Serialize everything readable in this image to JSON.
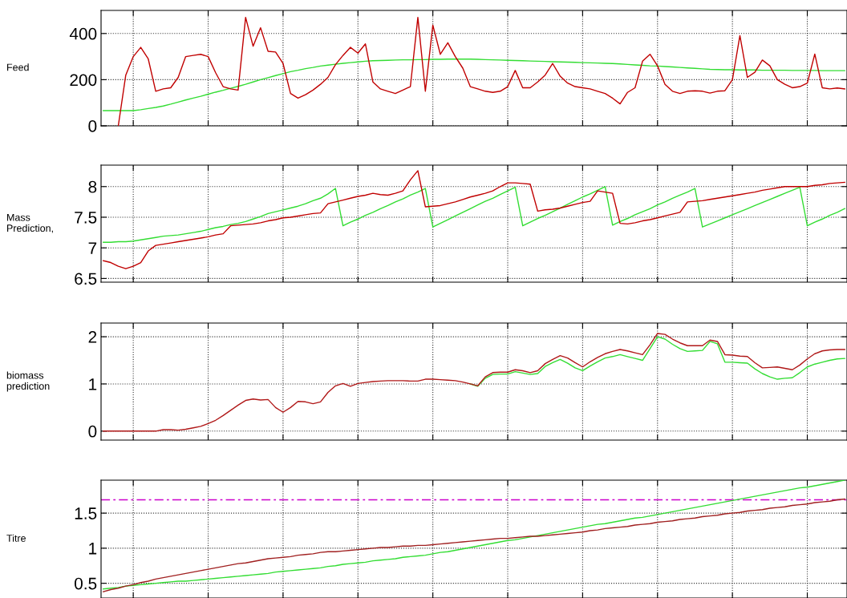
{
  "chart_data": [
    {
      "type": "line",
      "ylabel": "Feed",
      "categories": [
        null,
        null,
        null,
        null,
        null,
        null,
        null,
        null,
        null,
        null,
        null,
        null,
        null,
        null,
        null,
        null,
        null,
        null,
        null,
        null,
        null,
        null,
        null,
        null,
        null,
        null,
        null,
        null,
        null,
        null,
        null,
        null,
        null,
        null,
        null,
        null,
        null,
        null,
        null,
        null,
        null,
        null,
        null,
        null,
        null,
        null,
        null,
        null,
        null,
        null,
        null,
        null,
        null,
        null,
        null,
        null,
        null,
        null,
        null,
        null,
        null,
        null,
        null,
        null,
        null,
        null,
        null,
        null,
        null,
        null,
        null,
        null,
        null,
        null,
        null,
        null,
        null,
        null,
        null,
        null,
        null,
        null,
        null,
        null,
        null,
        null,
        null,
        null,
        null,
        null,
        null,
        null,
        null,
        null,
        null,
        null,
        null,
        null,
        null,
        null
      ],
      "ylim": [
        0,
        500
      ],
      "yticks": [
        0,
        200,
        400
      ],
      "grid": true,
      "tick_labels": "y",
      "line_style": "solid",
      "marker": "none",
      "series": [
        {
          "color": "#33dd33",
          "values": [
            66,
            66,
            66,
            66,
            66,
            70,
            75,
            80,
            86,
            94,
            103,
            112,
            120,
            128,
            137,
            146,
            154,
            163,
            171,
            180,
            190,
            200,
            209,
            218,
            226,
            235,
            241,
            248,
            253,
            259,
            263,
            267,
            271,
            274,
            277,
            280,
            282,
            283,
            284,
            285,
            286,
            286,
            287,
            287,
            288,
            288,
            289,
            289,
            289,
            289,
            288,
            287,
            286,
            285,
            284,
            283,
            282,
            281,
            280,
            279,
            278,
            277,
            276,
            275,
            274,
            273,
            272,
            271,
            270,
            268,
            266,
            264,
            262,
            260,
            259,
            257,
            255,
            253,
            251,
            249,
            247,
            245,
            244,
            243,
            243,
            242,
            242,
            242,
            241,
            241,
            241,
            241,
            240,
            240,
            240,
            240,
            239,
            239,
            239,
            239
          ]
        },
        {
          "color": "#c00000",
          "values": [
            null,
            null,
            0,
            220,
            300,
            340,
            290,
            150,
            160,
            165,
            210,
            300,
            305,
            310,
            300,
            230,
            170,
            160,
            155,
            470,
            345,
            425,
            323,
            320,
            270,
            140,
            120,
            135,
            155,
            180,
            210,
            265,
            305,
            340,
            315,
            355,
            190,
            160,
            150,
            140,
            155,
            170,
            470,
            150,
            436,
            310,
            360,
            300,
            250,
            170,
            160,
            150,
            145,
            150,
            170,
            240,
            165,
            165,
            190,
            220,
            270,
            215,
            185,
            170,
            165,
            160,
            150,
            140,
            120,
            95,
            145,
            165,
            280,
            310,
            260,
            180,
            150,
            140,
            150,
            152,
            150,
            142,
            150,
            152,
            200,
            391,
            210,
            232,
            285,
            260,
            200,
            180,
            165,
            170,
            185,
            311,
            165,
            160,
            164,
            160
          ]
        }
      ]
    },
    {
      "type": "line",
      "ylabel": "Mass\nPrediction,",
      "categories": [
        null,
        null,
        null,
        null,
        null,
        null,
        null,
        null,
        null,
        null,
        null,
        null,
        null,
        null,
        null,
        null,
        null,
        null,
        null,
        null,
        null,
        null,
        null,
        null,
        null,
        null,
        null,
        null,
        null,
        null,
        null,
        null,
        null,
        null,
        null,
        null,
        null,
        null,
        null,
        null,
        null,
        null,
        null,
        null,
        null,
        null,
        null,
        null,
        null,
        null,
        null,
        null,
        null,
        null,
        null,
        null,
        null,
        null,
        null,
        null,
        null,
        null,
        null,
        null,
        null,
        null,
        null,
        null,
        null,
        null,
        null,
        null,
        null,
        null,
        null,
        null,
        null,
        null,
        null,
        null,
        null,
        null,
        null,
        null,
        null,
        null,
        null,
        null,
        null,
        null,
        null,
        null,
        null,
        null,
        null,
        null,
        null,
        null,
        null,
        null
      ],
      "ylim": [
        6.44,
        8.35
      ],
      "yticks": [
        6.5,
        7,
        7.5,
        8
      ],
      "grid": true,
      "tick_labels": "y",
      "line_style": "solid",
      "marker": "none",
      "series": [
        {
          "color": "#33dd33",
          "values": [
            7.09,
            7.09,
            7.1,
            7.1,
            7.11,
            7.13,
            7.15,
            7.17,
            7.19,
            7.2,
            7.21,
            7.23,
            7.25,
            7.27,
            7.3,
            7.33,
            7.35,
            7.38,
            7.4,
            7.43,
            7.47,
            7.51,
            7.56,
            7.59,
            7.62,
            7.65,
            7.68,
            7.72,
            7.77,
            7.81,
            7.88,
            7.97,
            7.36,
            7.42,
            7.47,
            7.53,
            7.58,
            7.64,
            7.69,
            7.75,
            7.8,
            7.86,
            7.91,
            7.97,
            7.34,
            7.4,
            7.46,
            7.52,
            7.58,
            7.64,
            7.7,
            7.76,
            7.81,
            7.87,
            7.93,
            7.99,
            7.36,
            7.42,
            7.48,
            7.53,
            7.59,
            7.65,
            7.71,
            7.77,
            7.83,
            7.88,
            7.94,
            8.0,
            7.37,
            7.43,
            7.48,
            7.54,
            7.59,
            7.64,
            7.7,
            7.75,
            7.81,
            7.86,
            7.91,
            7.97,
            7.34,
            7.39,
            7.44,
            7.49,
            7.54,
            7.59,
            7.64,
            7.69,
            7.74,
            7.79,
            7.84,
            7.89,
            7.94,
            7.99,
            7.36,
            7.42,
            7.47,
            7.53,
            7.58,
            7.64
          ]
        },
        {
          "color": "#c00000",
          "values": [
            6.79,
            6.76,
            6.7,
            6.66,
            6.7,
            6.76,
            6.95,
            7.04,
            7.06,
            7.08,
            7.1,
            7.12,
            7.14,
            7.16,
            7.18,
            7.21,
            7.23,
            7.36,
            7.37,
            7.38,
            7.39,
            7.41,
            7.44,
            7.46,
            7.49,
            7.5,
            7.52,
            7.54,
            7.56,
            7.57,
            7.72,
            7.75,
            7.78,
            7.81,
            7.84,
            7.86,
            7.89,
            7.87,
            7.86,
            7.89,
            7.93,
            8.11,
            8.26,
            7.67,
            7.68,
            7.69,
            7.72,
            7.75,
            7.79,
            7.83,
            7.86,
            7.89,
            7.93,
            8.0,
            8.06,
            8.06,
            8.05,
            8.04,
            7.6,
            7.62,
            7.63,
            7.65,
            7.68,
            7.71,
            7.74,
            7.76,
            7.93,
            7.91,
            7.89,
            7.4,
            7.39,
            7.41,
            7.44,
            7.46,
            7.49,
            7.52,
            7.55,
            7.58,
            7.75,
            7.76,
            7.77,
            7.79,
            7.81,
            7.83,
            7.85,
            7.87,
            7.89,
            7.91,
            7.94,
            7.96,
            7.98,
            8.0,
            8.0,
            8.0,
            8.0,
            8.02,
            8.03,
            8.05,
            8.06,
            8.07
          ]
        }
      ]
    },
    {
      "type": "line",
      "ylabel": "biomass\nprediction",
      "categories": [
        null,
        null,
        null,
        null,
        null,
        null,
        null,
        null,
        null,
        null,
        null,
        null,
        null,
        null,
        null,
        null,
        null,
        null,
        null,
        null,
        null,
        null,
        null,
        null,
        null,
        null,
        null,
        null,
        null,
        null,
        null,
        null,
        null,
        null,
        null,
        null,
        null,
        null,
        null,
        null,
        null,
        null,
        null,
        null,
        null,
        null,
        null,
        null,
        null,
        null,
        null,
        null,
        null,
        null,
        null,
        null,
        null,
        null,
        null,
        null,
        null,
        null,
        null,
        null,
        null,
        null,
        null,
        null,
        null,
        null,
        null,
        null,
        null,
        null,
        null,
        null,
        null,
        null,
        null,
        null,
        null,
        null,
        null,
        null,
        null,
        null,
        null,
        null,
        null,
        null,
        null,
        null,
        null,
        null,
        null,
        null,
        null,
        null,
        null,
        null
      ],
      "ylim": [
        -0.19,
        2.29
      ],
      "yticks": [
        0,
        1,
        2
      ],
      "grid": true,
      "tick_labels": "y",
      "line_style": "solid",
      "marker": "none",
      "series": [
        {
          "color": "#33dd33",
          "values": [
            null,
            null,
            null,
            null,
            null,
            null,
            null,
            null,
            null,
            null,
            null,
            null,
            null,
            null,
            null,
            null,
            null,
            null,
            null,
            null,
            null,
            null,
            null,
            null,
            null,
            null,
            null,
            null,
            null,
            null,
            null,
            null,
            null,
            null,
            null,
            null,
            null,
            null,
            null,
            null,
            null,
            null,
            null,
            null,
            null,
            null,
            null,
            null,
            null,
            1.0,
            0.95,
            1.12,
            1.2,
            1.21,
            1.21,
            1.26,
            1.23,
            1.2,
            1.22,
            1.37,
            1.45,
            1.52,
            1.44,
            1.34,
            1.28,
            1.38,
            1.47,
            1.55,
            1.58,
            1.62,
            1.58,
            1.54,
            1.5,
            1.75,
            2.0,
            1.95,
            1.84,
            1.75,
            1.69,
            1.7,
            1.71,
            1.9,
            1.85,
            1.46,
            1.46,
            1.45,
            1.44,
            1.32,
            1.22,
            1.15,
            1.1,
            1.12,
            1.13,
            1.24,
            1.36,
            1.42,
            1.46,
            1.5,
            1.53,
            1.54
          ]
        },
        {
          "color": "#b01818",
          "values": [
            0,
            0,
            0,
            0,
            0,
            0,
            0,
            0,
            0.03,
            0.03,
            0.02,
            0.04,
            0.07,
            0.1,
            0.16,
            0.23,
            0.33,
            0.44,
            0.55,
            0.65,
            0.68,
            0.66,
            0.67,
            0.5,
            0.4,
            0.5,
            0.63,
            0.62,
            0.58,
            0.62,
            0.82,
            0.96,
            1.01,
            0.95,
            1.01,
            1.03,
            1.05,
            1.06,
            1.07,
            1.07,
            1.07,
            1.06,
            1.06,
            1.1,
            1.1,
            1.09,
            1.08,
            1.07,
            1.04,
            1.0,
            0.96,
            1.15,
            1.24,
            1.25,
            1.25,
            1.3,
            1.28,
            1.24,
            1.28,
            1.43,
            1.52,
            1.6,
            1.55,
            1.45,
            1.36,
            1.47,
            1.56,
            1.64,
            1.69,
            1.73,
            1.7,
            1.66,
            1.62,
            1.83,
            2.07,
            2.05,
            1.95,
            1.87,
            1.81,
            1.81,
            1.81,
            1.93,
            1.9,
            1.62,
            1.61,
            1.59,
            1.58,
            1.45,
            1.34,
            1.35,
            1.36,
            1.33,
            1.3,
            1.4,
            1.53,
            1.64,
            1.7,
            1.72,
            1.73,
            1.73
          ]
        }
      ]
    },
    {
      "type": "line",
      "ylabel": "Titre",
      "categories": [
        null,
        null,
        null,
        null,
        null,
        null,
        null,
        null,
        null,
        null,
        null,
        null,
        null,
        null,
        null,
        null,
        null,
        null,
        null,
        null,
        null,
        null,
        null,
        null,
        null,
        null,
        null,
        null,
        null,
        null,
        null,
        null,
        null,
        null,
        null,
        null,
        null,
        null,
        null,
        null,
        null,
        null,
        null,
        null,
        null,
        null,
        null,
        null,
        null,
        null,
        null,
        null,
        null,
        null,
        null,
        null,
        null,
        null,
        null,
        null,
        null,
        null,
        null,
        null,
        null,
        null,
        null,
        null,
        null,
        null,
        null,
        null,
        null,
        null,
        null,
        null,
        null,
        null,
        null,
        null,
        null,
        null,
        null,
        null,
        null,
        null,
        null,
        null,
        null,
        null,
        null,
        null,
        null,
        null,
        null,
        null,
        null,
        null,
        null,
        null
      ],
      "ylim": [
        0.29,
        1.97
      ],
      "yticks": [
        0.5,
        1,
        1.5
      ],
      "grid": true,
      "tick_labels": "y",
      "line_style": "solid",
      "marker": "none",
      "ref_lines": [
        {
          "axis": "y",
          "value": 1.69,
          "color": "#cc00cc",
          "line_style": "dashed"
        }
      ],
      "series": [
        {
          "color": "#33dd33",
          "values": [
            0.42,
            0.43,
            0.44,
            0.46,
            0.47,
            0.48,
            0.49,
            0.5,
            0.51,
            0.52,
            0.53,
            0.53,
            0.54,
            0.55,
            0.56,
            0.57,
            0.58,
            0.59,
            0.6,
            0.61,
            0.62,
            0.63,
            0.64,
            0.66,
            0.67,
            0.68,
            0.69,
            0.7,
            0.71,
            0.72,
            0.74,
            0.75,
            0.77,
            0.78,
            0.79,
            0.8,
            0.82,
            0.83,
            0.84,
            0.85,
            0.87,
            0.88,
            0.89,
            0.9,
            0.92,
            0.94,
            0.95,
            0.97,
            0.99,
            1.01,
            1.03,
            1.05,
            1.07,
            1.09,
            1.11,
            1.12,
            1.14,
            1.16,
            1.18,
            1.2,
            1.22,
            1.24,
            1.26,
            1.28,
            1.3,
            1.32,
            1.34,
            1.35,
            1.37,
            1.39,
            1.41,
            1.43,
            1.44,
            1.46,
            1.48,
            1.5,
            1.52,
            1.54,
            1.56,
            1.58,
            1.6,
            1.62,
            1.64,
            1.66,
            1.68,
            1.7,
            1.72,
            1.74,
            1.76,
            1.78,
            1.8,
            1.82,
            1.84,
            1.86,
            1.87,
            1.89,
            1.91,
            1.93,
            1.95,
            1.97
          ]
        },
        {
          "color": "#a02020",
          "values": [
            0.38,
            0.41,
            0.43,
            0.46,
            0.48,
            0.51,
            0.53,
            0.56,
            0.58,
            0.6,
            0.62,
            0.64,
            0.66,
            0.68,
            0.7,
            0.72,
            0.74,
            0.76,
            0.78,
            0.79,
            0.81,
            0.83,
            0.85,
            0.86,
            0.87,
            0.88,
            0.9,
            0.91,
            0.92,
            0.94,
            0.95,
            0.95,
            0.96,
            0.97,
            0.98,
            0.99,
            1.0,
            1.01,
            1.01,
            1.02,
            1.03,
            1.03,
            1.04,
            1.04,
            1.05,
            1.06,
            1.07,
            1.08,
            1.09,
            1.1,
            1.11,
            1.12,
            1.13,
            1.14,
            1.14,
            1.15,
            1.16,
            1.17,
            1.17,
            1.18,
            1.19,
            1.2,
            1.21,
            1.22,
            1.23,
            1.25,
            1.26,
            1.28,
            1.29,
            1.3,
            1.31,
            1.33,
            1.34,
            1.35,
            1.37,
            1.38,
            1.39,
            1.41,
            1.42,
            1.43,
            1.45,
            1.46,
            1.47,
            1.49,
            1.5,
            1.51,
            1.53,
            1.54,
            1.55,
            1.57,
            1.58,
            1.59,
            1.61,
            1.62,
            1.63,
            1.65,
            1.66,
            1.67,
            1.69,
            1.7
          ]
        }
      ]
    }
  ]
}
